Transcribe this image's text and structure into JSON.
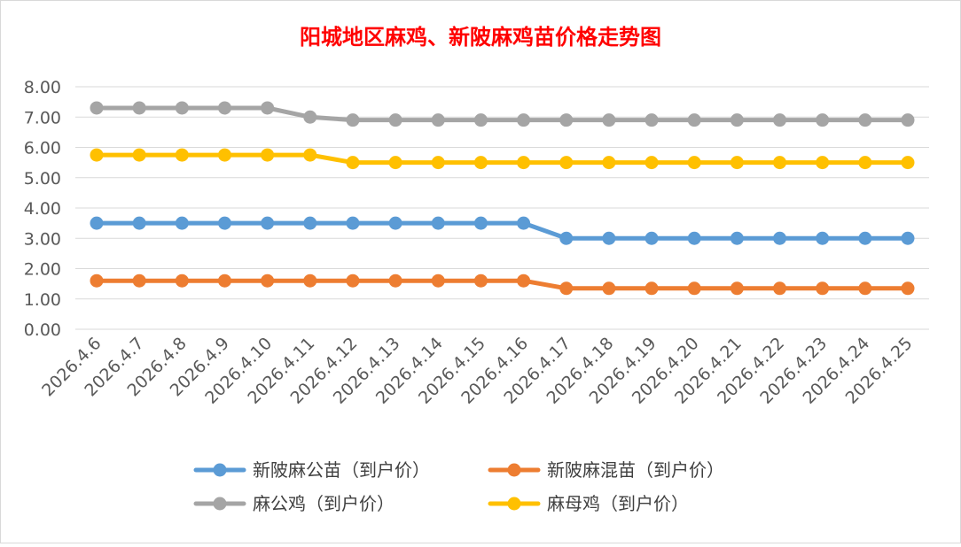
{
  "chart_data": {
    "type": "line",
    "title": "阳城地区麻鸡、新陂麻鸡苗价格走势图",
    "title_color": "#ff0000",
    "xlabel": "",
    "ylabel": "",
    "ylim": [
      0,
      8
    ],
    "y_ticks": [
      "0.00",
      "1.00",
      "2.00",
      "3.00",
      "4.00",
      "5.00",
      "6.00",
      "7.00",
      "8.00"
    ],
    "grid": true,
    "legend_position": "bottom",
    "categories": [
      "2026.4.6",
      "2026.4.7",
      "2026.4.8",
      "2026.4.9",
      "2026.4.10",
      "2026.4.11",
      "2026.4.12",
      "2026.4.13",
      "2026.4.14",
      "2026.4.15",
      "2026.4.16",
      "2026.4.17",
      "2026.4.18",
      "2026.4.19",
      "2026.4.20",
      "2026.4.21",
      "2026.4.22",
      "2026.4.23",
      "2026.4.24",
      "2026.4.25"
    ],
    "series": [
      {
        "name": "新陂麻公苗（到户价）",
        "color": "#5b9bd5",
        "values": [
          3.5,
          3.5,
          3.5,
          3.5,
          3.5,
          3.5,
          3.5,
          3.5,
          3.5,
          3.5,
          3.5,
          3.0,
          3.0,
          3.0,
          3.0,
          3.0,
          3.0,
          3.0,
          3.0,
          3.0
        ]
      },
      {
        "name": "新陂麻混苗（到户价）",
        "color": "#ed7d31",
        "values": [
          1.6,
          1.6,
          1.6,
          1.6,
          1.6,
          1.6,
          1.6,
          1.6,
          1.6,
          1.6,
          1.6,
          1.35,
          1.35,
          1.35,
          1.35,
          1.35,
          1.35,
          1.35,
          1.35,
          1.35
        ]
      },
      {
        "name": "麻公鸡（到户价）",
        "color": "#a5a5a5",
        "values": [
          7.3,
          7.3,
          7.3,
          7.3,
          7.3,
          7.0,
          6.9,
          6.9,
          6.9,
          6.9,
          6.9,
          6.9,
          6.9,
          6.9,
          6.9,
          6.9,
          6.9,
          6.9,
          6.9,
          6.9
        ]
      },
      {
        "name": "麻母鸡（到户价）",
        "color": "#ffc000",
        "values": [
          5.75,
          5.75,
          5.75,
          5.75,
          5.75,
          5.75,
          5.5,
          5.5,
          5.5,
          5.5,
          5.5,
          5.5,
          5.5,
          5.5,
          5.5,
          5.5,
          5.5,
          5.5,
          5.5,
          5.5
        ]
      }
    ]
  }
}
